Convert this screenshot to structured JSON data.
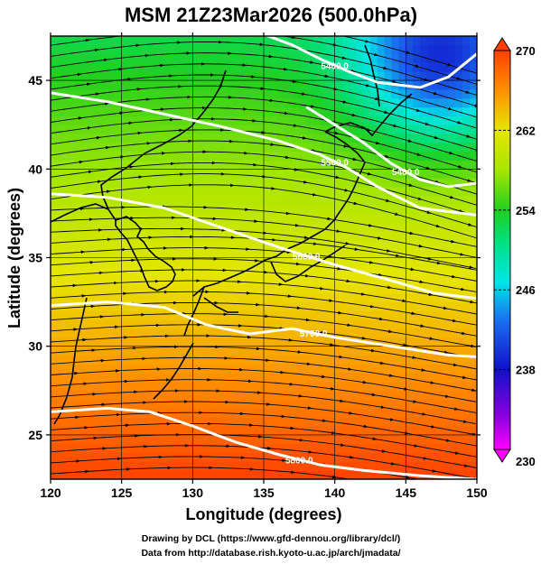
{
  "chart_data": {
    "type": "heatmap",
    "title": "MSM 21Z23Mar2026 (500.0hPa)",
    "xlabel": "Longitude (degrees)",
    "ylabel": "Latitude  (degrees)",
    "xlim": [
      120,
      150
    ],
    "ylim": [
      22.5,
      47.5
    ],
    "x_ticks": [
      120,
      125,
      130,
      135,
      140,
      145,
      150
    ],
    "y_ticks": [
      25,
      30,
      35,
      40,
      45
    ],
    "x_tick_labels": [
      "120",
      "125",
      "130",
      "135",
      "140",
      "145",
      "150"
    ],
    "y_tick_labels": [
      "25",
      "30",
      "35",
      "40",
      "45"
    ],
    "grid": true,
    "shaded_variable_range": [
      230,
      270
    ],
    "colorbar": {
      "ticks": [
        230,
        238,
        246,
        254,
        262,
        270
      ],
      "tick_labels": [
        "230",
        "238",
        "246",
        "254",
        "262",
        "270"
      ],
      "colors": [
        "#ff00ff",
        "#1010c8",
        "#00e6e6",
        "#20d020",
        "#e6e600",
        "#ff4000"
      ]
    },
    "contours": [
      {
        "label": "5400.0",
        "lon": [
          120,
          124,
          128,
          132,
          135,
          137,
          139,
          141,
          143,
          146,
          148,
          150
        ],
        "lat": [
          49.5,
          49.3,
          48.8,
          48.2,
          47.6,
          47.0,
          46.2,
          45.5,
          44.9,
          44.6,
          45.2,
          46.5
        ]
      },
      {
        "label": "5400.0",
        "lon": [
          138,
          140,
          142,
          144,
          146,
          148,
          150
        ],
        "lat": [
          43.5,
          42.5,
          41.5,
          40.3,
          39.4,
          39.0,
          39.2
        ]
      },
      {
        "label": "5500.0",
        "lon": [
          120,
          124,
          128,
          132,
          136,
          139,
          141,
          143,
          146,
          150
        ],
        "lat": [
          44.3,
          43.8,
          43.1,
          42.4,
          41.6,
          40.8,
          40.0,
          39.0,
          37.8,
          37.4
        ]
      },
      {
        "label": "5600.0",
        "lon": [
          120,
          124,
          128,
          132,
          136,
          140,
          144,
          147,
          150
        ],
        "lat": [
          38.6,
          38.4,
          37.8,
          36.7,
          35.6,
          34.6,
          33.7,
          33.0,
          32.7
        ]
      },
      {
        "label": "5700.0",
        "lon": [
          120,
          124,
          128,
          131,
          134,
          137,
          140,
          144,
          148,
          150
        ],
        "lat": [
          32.3,
          32.5,
          32.2,
          31.2,
          30.7,
          31.0,
          30.5,
          30.0,
          29.5,
          29.4
        ]
      },
      {
        "label": "5800.0",
        "lon": [
          120,
          124,
          127,
          130,
          133,
          136,
          139,
          142,
          146,
          150
        ],
        "lat": [
          26.3,
          26.5,
          26.3,
          25.5,
          24.6,
          23.9,
          23.3,
          23.0,
          22.7,
          22.5
        ]
      }
    ],
    "wind_direction": "westerly to west-northwesterly flow across the domain",
    "credits": [
      "Drawing by DCL (https://www.gfd-dennou.org/library/dcl/)",
      "Data from http://database.rish.kyoto-u.ac.jp/arch/jmadata/"
    ]
  }
}
